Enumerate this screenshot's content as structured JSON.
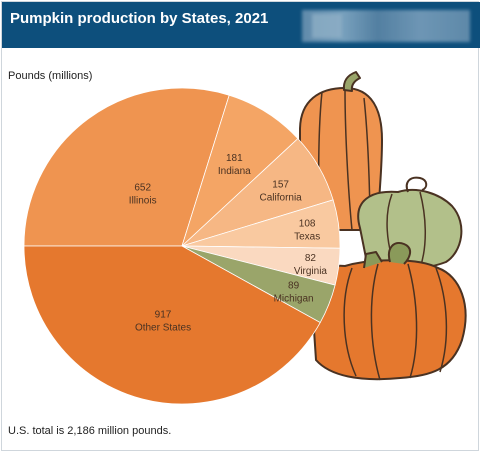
{
  "header": {
    "title": "Pumpkin production by States, 2021"
  },
  "units_label": "Pounds (millions)",
  "footnote": "U.S. total is 2,186 million pounds.",
  "chart_data": {
    "type": "pie",
    "title": "Pumpkin production by States, 2021",
    "unit": "Pounds (millions)",
    "total": 2186,
    "slices": [
      {
        "name": "Illinois",
        "value": 652,
        "color": "#ef9450"
      },
      {
        "name": "Indiana",
        "value": 181,
        "color": "#f4a565"
      },
      {
        "name": "California",
        "value": 157,
        "color": "#f6b784"
      },
      {
        "name": "Texas",
        "value": 108,
        "color": "#f9c9a0"
      },
      {
        "name": "Virginia",
        "value": 82,
        "color": "#fad9c0"
      },
      {
        "name": "Michigan",
        "value": 89,
        "color": "#9aa56a"
      },
      {
        "name": "Other States",
        "value": 917,
        "color": "#e5782e"
      }
    ]
  },
  "colors": {
    "header_bg": "#0d4f7c",
    "slice_border": "#ffffff",
    "pumpkin_outline": "#4a3222"
  }
}
